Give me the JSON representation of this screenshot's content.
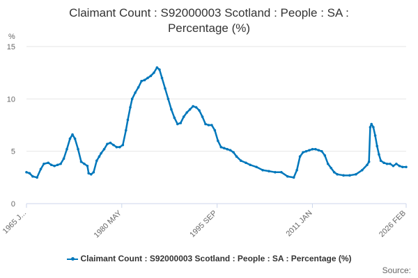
{
  "chart_data": {
    "type": "line",
    "title_lines": [
      "Claimant Count : S92000003 Scotland : People : SA :",
      "Percentage (%)"
    ],
    "y_unit": "%",
    "ylim": [
      0,
      15
    ],
    "y_ticks": [
      "0",
      "5",
      "10",
      "15"
    ],
    "x_ticks": [
      "1965 J...",
      "1980 MAY",
      "1995 SEP",
      "2011 JAN",
      "2026 FEB"
    ],
    "x_tick_years": [
      1965.0,
      1980.33,
      1995.67,
      2011.0,
      2026.08
    ],
    "grid": true,
    "legend_position": "bottom",
    "color": "#0077bb",
    "series": [
      {
        "name": "Claimant Count : S92000003 Scotland : People : SA : Percentage (%)",
        "x": [
          1965.0,
          1965.5,
          1966.0,
          1966.7,
          1967.3,
          1967.8,
          1968.5,
          1969.0,
          1969.5,
          1970.0,
          1970.5,
          1971.0,
          1971.5,
          1972.0,
          1972.4,
          1972.8,
          1973.3,
          1973.8,
          1974.3,
          1974.8,
          1975.0,
          1975.4,
          1975.8,
          1976.3,
          1976.7,
          1977.0,
          1977.5,
          1978.0,
          1978.5,
          1979.0,
          1979.5,
          1980.0,
          1980.5,
          1981.0,
          1981.3,
          1981.7,
          1982.0,
          1982.5,
          1983.0,
          1983.5,
          1984.0,
          1984.5,
          1985.0,
          1985.5,
          1986.0,
          1986.4,
          1986.8,
          1987.3,
          1987.8,
          1988.3,
          1988.8,
          1989.3,
          1989.8,
          1990.3,
          1990.8,
          1991.3,
          1991.8,
          1992.3,
          1992.8,
          1993.3,
          1993.8,
          1994.3,
          1994.8,
          1995.3,
          1995.8,
          1996.3,
          1996.8,
          1997.3,
          1997.8,
          1998.3,
          1998.8,
          1999.5,
          2000.3,
          2001.0,
          2002.0,
          2003.0,
          2004.0,
          2005.0,
          2006.0,
          2007.0,
          2008.0,
          2008.5,
          2009.0,
          2009.5,
          2010.0,
          2010.5,
          2011.0,
          2011.5,
          2012.0,
          2012.5,
          2013.0,
          2013.5,
          2014.0,
          2014.5,
          2015.0,
          2016.0,
          2017.0,
          2018.0,
          2019.0,
          2019.8,
          2020.1,
          2020.3,
          2020.5,
          2020.8,
          2021.1,
          2021.4,
          2021.7,
          2022.0,
          2022.5,
          2023.0,
          2023.5,
          2024.0,
          2024.5,
          2025.0,
          2025.5,
          2026.08
        ],
        "y": [
          3.0,
          2.9,
          2.6,
          2.5,
          3.3,
          3.8,
          3.9,
          3.7,
          3.6,
          3.7,
          3.8,
          4.3,
          5.2,
          6.2,
          6.6,
          6.2,
          5.2,
          4.0,
          3.8,
          3.6,
          2.9,
          2.8,
          3.0,
          4.1,
          4.5,
          4.8,
          5.2,
          5.7,
          5.8,
          5.6,
          5.4,
          5.4,
          5.6,
          7.0,
          8.0,
          9.2,
          10.0,
          10.6,
          11.1,
          11.7,
          11.8,
          12.0,
          12.2,
          12.5,
          13.0,
          12.8,
          12.0,
          11.0,
          10.0,
          9.0,
          8.2,
          7.6,
          7.7,
          8.3,
          8.7,
          9.0,
          9.3,
          9.2,
          8.9,
          8.3,
          7.6,
          7.5,
          7.5,
          7.0,
          6.0,
          5.4,
          5.3,
          5.2,
          5.1,
          4.9,
          4.5,
          4.1,
          3.9,
          3.7,
          3.5,
          3.2,
          3.1,
          3.0,
          3.0,
          2.6,
          2.5,
          3.2,
          4.5,
          4.9,
          5.0,
          5.1,
          5.2,
          5.2,
          5.1,
          5.0,
          4.6,
          3.8,
          3.4,
          3.0,
          2.8,
          2.7,
          2.7,
          2.8,
          3.2,
          3.7,
          4.0,
          7.3,
          7.6,
          7.3,
          6.5,
          5.5,
          4.7,
          4.1,
          3.9,
          3.8,
          3.8,
          3.6,
          3.8,
          3.6,
          3.5,
          3.5
        ]
      }
    ]
  },
  "credits": "Source:"
}
